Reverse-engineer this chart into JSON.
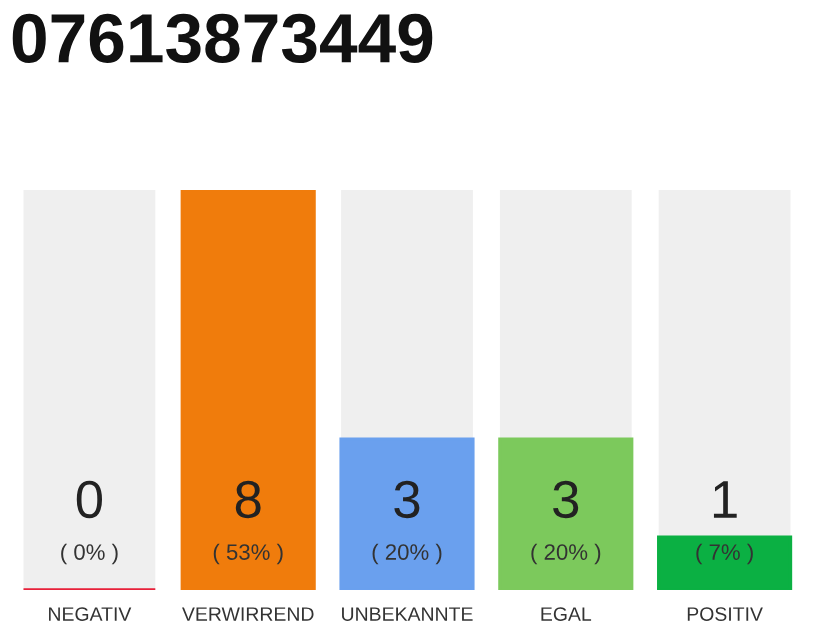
{
  "chart_data": {
    "type": "bar",
    "title": "07613873449",
    "categories": [
      "NEGATIV",
      "VERWIRREND",
      "UNBEKANNTE",
      "EGAL",
      "POSITIV"
    ],
    "values": [
      0,
      53,
      20,
      20,
      7
    ],
    "ylim": [
      0,
      53
    ],
    "colors": [
      "#e8203a",
      "#f07c0c",
      "#6aa0ee",
      "#7cc95c",
      "#0bb043"
    ],
    "value_labels": [
      "0\n( 0% )",
      "8\n( 53% )",
      "3\n( 20% )",
      "3\n( 20% )",
      "1\n( 7% )"
    ],
    "grid": false,
    "legend": false
  }
}
